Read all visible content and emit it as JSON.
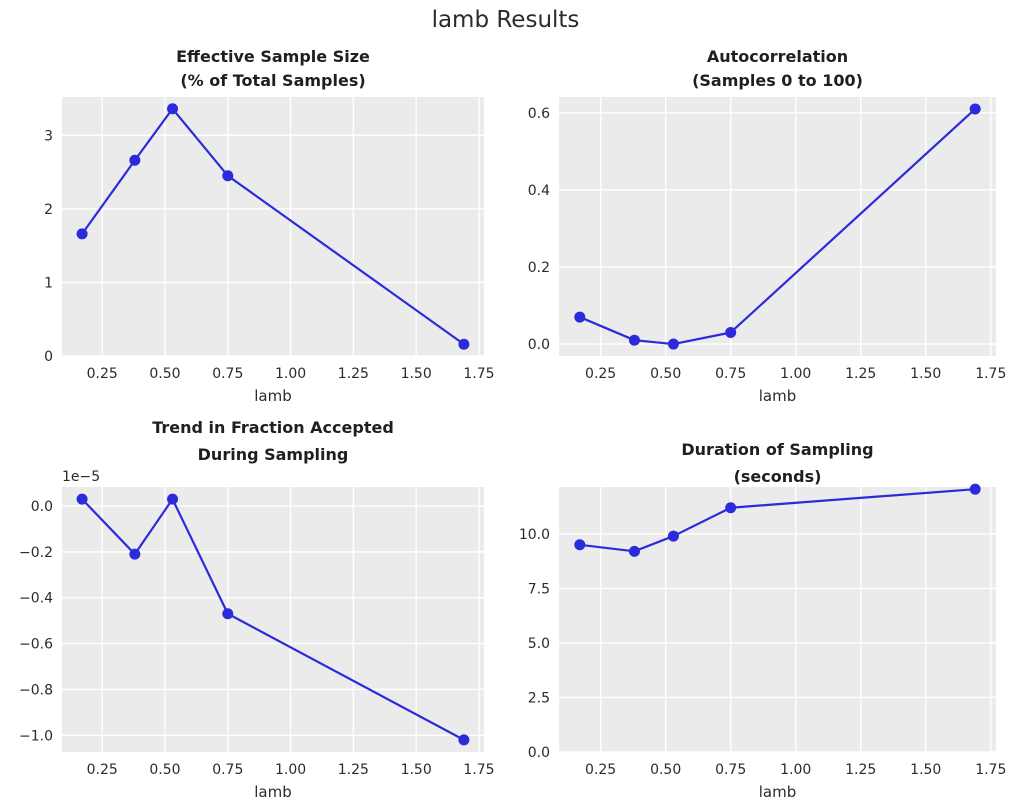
{
  "figure": {
    "suptitle": "lamb Results"
  },
  "style": {
    "figure_background": "#ffffff",
    "axes_background": "#ebebeb",
    "grid_color": "#ffffff",
    "line_color": "#2b2bdb",
    "marker_color": "#2b2bdb",
    "tick_text_color": "#2b2b2b",
    "title_text_color": "#1f1f1f"
  },
  "chart_data": [
    {
      "id": "ess",
      "type": "line",
      "title_lines": [
        "Effective Sample Size",
        "(% of Total Samples)"
      ],
      "title": "Effective Sample Size (% of Total Samples)",
      "xlabel": "lamb",
      "x": [
        0.17,
        0.38,
        0.53,
        0.75,
        1.69
      ],
      "y": [
        1.66,
        2.66,
        3.36,
        2.45,
        0.16
      ],
      "xlim": [
        0.09,
        1.77
      ],
      "ylim": [
        0,
        3.52
      ],
      "xticks": [
        0.25,
        0.5,
        0.75,
        1.0,
        1.25,
        1.5,
        1.75
      ],
      "xtick_labels": [
        "0.25",
        "0.50",
        "0.75",
        "1.00",
        "1.25",
        "1.50",
        "1.75"
      ],
      "yticks": [
        0,
        1,
        2,
        3
      ],
      "ytick_labels": [
        "0",
        "1",
        "2",
        "3"
      ],
      "grid": true,
      "legend": null
    },
    {
      "id": "autocorr",
      "type": "line",
      "title_lines": [
        "Autocorrelation",
        "(Samples 0 to 100)"
      ],
      "title": "Autocorrelation (Samples 0 to 100)",
      "xlabel": "lamb",
      "x": [
        0.17,
        0.38,
        0.53,
        0.75,
        1.69
      ],
      "y": [
        0.07,
        0.01,
        0.0,
        0.03,
        0.61
      ],
      "xlim": [
        0.09,
        1.77
      ],
      "ylim": [
        -0.031,
        0.641
      ],
      "xticks": [
        0.25,
        0.5,
        0.75,
        1.0,
        1.25,
        1.5,
        1.75
      ],
      "xtick_labels": [
        "0.25",
        "0.50",
        "0.75",
        "1.00",
        "1.25",
        "1.50",
        "1.75"
      ],
      "yticks": [
        0.0,
        0.2,
        0.4,
        0.6
      ],
      "ytick_labels": [
        "0.0",
        "0.2",
        "0.4",
        "0.6"
      ],
      "grid": true,
      "legend": null
    },
    {
      "id": "trend",
      "type": "line",
      "title_lines": [
        "Trend in Fraction Accepted",
        "During Sampling"
      ],
      "title": "Trend in Fraction Accepted During Sampling",
      "xlabel": "lamb",
      "offset_text": "1e−5",
      "x": [
        0.17,
        0.38,
        0.53,
        0.75,
        1.69
      ],
      "y": [
        0.03,
        -0.21,
        0.03,
        -0.47,
        -1.02
      ],
      "xlim": [
        0.09,
        1.77
      ],
      "ylim": [
        -1.073,
        0.083
      ],
      "xticks": [
        0.25,
        0.5,
        0.75,
        1.0,
        1.25,
        1.5,
        1.75
      ],
      "xtick_labels": [
        "0.25",
        "0.50",
        "0.75",
        "1.00",
        "1.25",
        "1.50",
        "1.75"
      ],
      "yticks": [
        0.0,
        -0.2,
        -0.4,
        -0.6,
        -0.8,
        -1.0
      ],
      "ytick_labels": [
        "0.0",
        "−0.2",
        "−0.4",
        "−0.6",
        "−0.8",
        "−1.0"
      ],
      "grid": true,
      "legend": null
    },
    {
      "id": "duration",
      "type": "line",
      "title_lines": [
        "Duration of Sampling",
        "(seconds)"
      ],
      "title": "Duration of Sampling (seconds)",
      "xlabel": "lamb",
      "x": [
        0.17,
        0.38,
        0.53,
        0.75,
        1.69
      ],
      "y": [
        9.5,
        9.2,
        9.9,
        11.2,
        12.05
      ],
      "xlim": [
        0.09,
        1.77
      ],
      "ylim": [
        0,
        12.15
      ],
      "xticks": [
        0.25,
        0.5,
        0.75,
        1.0,
        1.25,
        1.5,
        1.75
      ],
      "xtick_labels": [
        "0.25",
        "0.50",
        "0.75",
        "1.00",
        "1.25",
        "1.50",
        "1.75"
      ],
      "yticks": [
        0.0,
        2.5,
        5.0,
        7.5,
        10.0
      ],
      "ytick_labels": [
        "0.0",
        "2.5",
        "5.0",
        "7.5",
        "10.0"
      ],
      "grid": true,
      "legend": null
    }
  ]
}
